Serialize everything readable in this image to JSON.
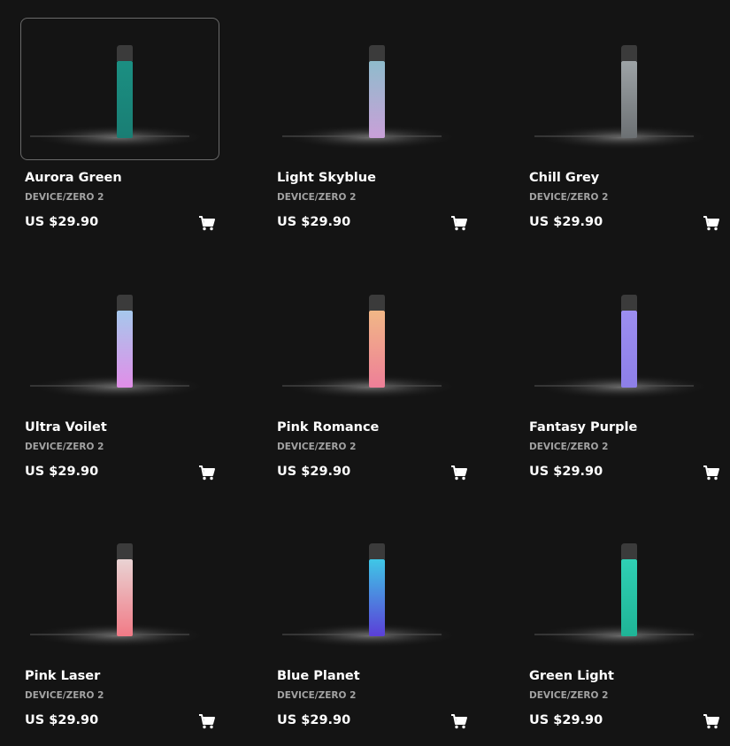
{
  "products": [
    {
      "name": "Aurora Green",
      "category": "DEVICE/ZERO 2",
      "price": "US $29.90"
    },
    {
      "name": "Light Skyblue",
      "category": "DEVICE/ZERO 2",
      "price": "US $29.90"
    },
    {
      "name": "Chill Grey",
      "category": "DEVICE/ZERO 2",
      "price": "US $29.90"
    },
    {
      "name": "Ultra Voilet",
      "category": "DEVICE/ZERO 2",
      "price": "US $29.90"
    },
    {
      "name": "Pink Romance",
      "category": "DEVICE/ZERO 2",
      "price": "US $29.90"
    },
    {
      "name": "Fantasy Purple",
      "category": "DEVICE/ZERO 2",
      "price": "US $29.90"
    },
    {
      "name": "Pink Laser",
      "category": "DEVICE/ZERO 2",
      "price": "US $29.90"
    },
    {
      "name": "Blue Planet",
      "category": "DEVICE/ZERO 2",
      "price": "US $29.90"
    },
    {
      "name": "Green Light",
      "category": "DEVICE/ZERO 2",
      "price": "US $29.90"
    }
  ]
}
